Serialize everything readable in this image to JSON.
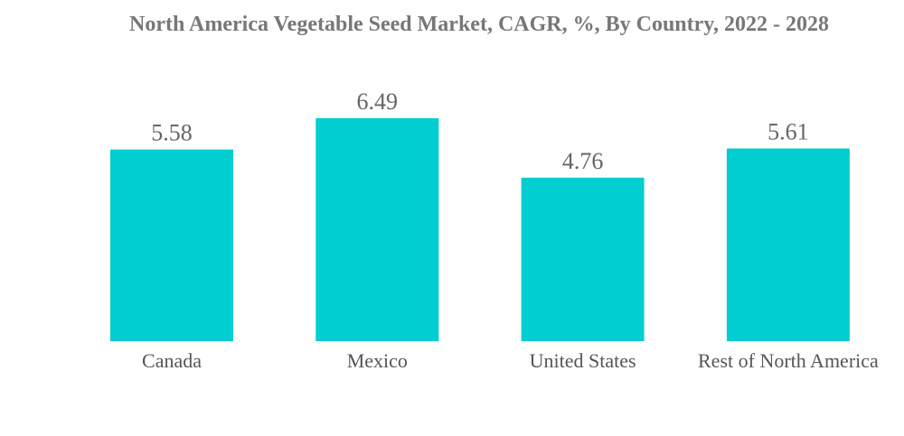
{
  "chart_data": {
    "type": "bar",
    "title": "North America Vegetable Seed Market, CAGR, %, By Country, 2022 - 2028",
    "categories": [
      "Canada",
      "Mexico",
      "United States",
      "Rest of North America"
    ],
    "values": [
      5.58,
      6.49,
      4.76,
      5.61
    ],
    "value_labels": [
      "5.58",
      "6.49",
      "4.76",
      "5.61"
    ],
    "xlabel": "",
    "ylabel": "",
    "ylim": [
      0,
      6.49
    ],
    "grid": false,
    "legend": "none",
    "bar_color": "#00CED1"
  }
}
